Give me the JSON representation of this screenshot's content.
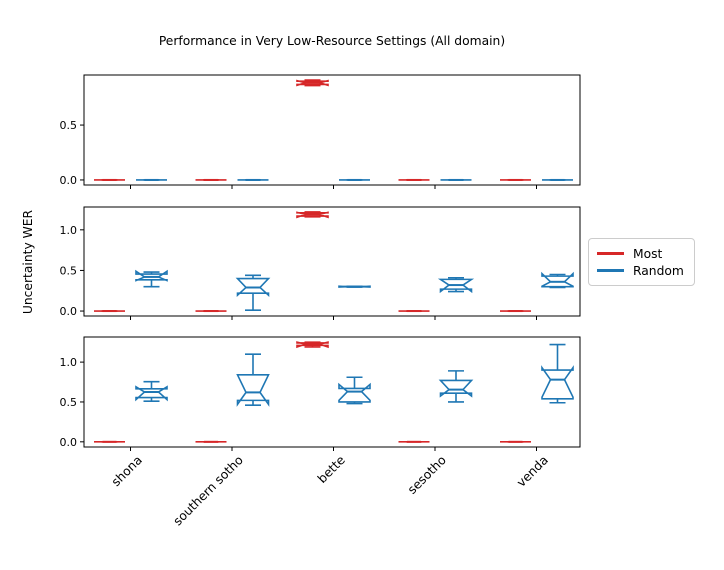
{
  "chart_data": {
    "type": "boxplot",
    "title": "Performance in Very Low-Resource Settings (All domain)",
    "ylabel": "Uncertainty WER",
    "categories": [
      "shona",
      "southern sotho",
      "bette",
      "sesotho",
      "venda"
    ],
    "legend": [
      {
        "label": "Most",
        "color": "#d62728"
      },
      {
        "label": "Random",
        "color": "#1f77b4"
      }
    ],
    "legend_position": "center right, outside axes",
    "notched": true,
    "colors": {
      "most": "#d62728",
      "random": "#1f77b4",
      "axis": "#000000",
      "background": "#ffffff"
    },
    "subplots": [
      {
        "yticks": [
          0.0,
          0.5
        ],
        "ylim": [
          -0.046,
          0.956
        ],
        "series": [
          {
            "name": "Most",
            "color": "#d62728",
            "boxes": [
              {
                "wlo": 0,
                "q1": 0,
                "med": 0,
                "q3": 0,
                "whi": 0,
                "nlo": 0,
                "nhi": 0
              },
              {
                "wlo": 0,
                "q1": 0,
                "med": 0,
                "q3": 0,
                "whi": 0,
                "nlo": 0,
                "nhi": 0
              },
              {
                "wlo": 0.86,
                "q1": 0.87,
                "med": 0.885,
                "q3": 0.9,
                "whi": 0.91,
                "nlo": 0.862,
                "nhi": 0.905
              },
              {
                "wlo": 0,
                "q1": 0,
                "med": 0,
                "q3": 0,
                "whi": 0,
                "nlo": 0,
                "nhi": 0
              },
              {
                "wlo": 0,
                "q1": 0,
                "med": 0,
                "q3": 0,
                "whi": 0,
                "nlo": 0,
                "nhi": 0
              }
            ]
          },
          {
            "name": "Random",
            "color": "#1f77b4",
            "boxes": [
              {
                "wlo": 0,
                "q1": 0,
                "med": 0,
                "q3": 0,
                "whi": 0,
                "nlo": 0,
                "nhi": 0
              },
              {
                "wlo": 0,
                "q1": 0,
                "med": 0,
                "q3": 0,
                "whi": 0,
                "nlo": 0,
                "nhi": 0
              },
              {
                "wlo": 0,
                "q1": 0,
                "med": 0,
                "q3": 0,
                "whi": 0,
                "nlo": 0,
                "nhi": 0
              },
              {
                "wlo": 0,
                "q1": 0,
                "med": 0,
                "q3": 0,
                "whi": 0,
                "nlo": 0,
                "nhi": 0
              },
              {
                "wlo": 0,
                "q1": 0,
                "med": 0,
                "q3": 0,
                "whi": 0,
                "nlo": 0,
                "nhi": 0
              }
            ]
          }
        ]
      },
      {
        "yticks": [
          0.0,
          0.5,
          1.0
        ],
        "ylim": [
          -0.061,
          1.281
        ],
        "series": [
          {
            "name": "Most",
            "color": "#d62728",
            "boxes": [
              {
                "wlo": 0,
                "q1": 0,
                "med": 0,
                "q3": 0,
                "whi": 0,
                "nlo": 0,
                "nhi": 0
              },
              {
                "wlo": 0,
                "q1": 0,
                "med": 0,
                "q3": 0,
                "whi": 0,
                "nlo": 0,
                "nhi": 0
              },
              {
                "wlo": 1.16,
                "q1": 1.17,
                "med": 1.19,
                "q3": 1.21,
                "whi": 1.22,
                "nlo": 1.155,
                "nhi": 1.215
              },
              {
                "wlo": 0,
                "q1": 0,
                "med": 0,
                "q3": 0,
                "whi": 0,
                "nlo": 0,
                "nhi": 0
              },
              {
                "wlo": 0,
                "q1": 0,
                "med": 0,
                "q3": 0,
                "whi": 0,
                "nlo": 0,
                "nhi": 0
              }
            ]
          },
          {
            "name": "Random",
            "color": "#1f77b4",
            "boxes": [
              {
                "wlo": 0.3,
                "q1": 0.385,
                "med": 0.42,
                "q3": 0.455,
                "whi": 0.48,
                "nlo": 0.375,
                "nhi": 0.49
              },
              {
                "wlo": 0.01,
                "q1": 0.22,
                "med": 0.29,
                "q3": 0.4,
                "whi": 0.44,
                "nlo": 0.195,
                "nhi": 0.4
              },
              {
                "wlo": 0.295,
                "q1": 0.298,
                "med": 0.3,
                "q3": 0.303,
                "whi": 0.305,
                "nlo": 0.295,
                "nhi": 0.305
              },
              {
                "wlo": 0.24,
                "q1": 0.27,
                "med": 0.32,
                "q3": 0.39,
                "whi": 0.41,
                "nlo": 0.24,
                "nhi": 0.39
              },
              {
                "wlo": 0.29,
                "q1": 0.3,
                "med": 0.36,
                "q3": 0.43,
                "whi": 0.45,
                "nlo": 0.305,
                "nhi": 0.46
              }
            ]
          }
        ]
      },
      {
        "yticks": [
          0.0,
          0.5,
          1.0
        ],
        "ylim": [
          -0.065,
          1.315
        ],
        "series": [
          {
            "name": "Most",
            "color": "#d62728",
            "boxes": [
              {
                "wlo": 0,
                "q1": 0,
                "med": 0,
                "q3": 0,
                "whi": 0,
                "nlo": 0,
                "nhi": 0
              },
              {
                "wlo": 0,
                "q1": 0,
                "med": 0,
                "q3": 0,
                "whi": 0,
                "nlo": 0,
                "nhi": 0
              },
              {
                "wlo": 1.19,
                "q1": 1.21,
                "med": 1.225,
                "q3": 1.24,
                "whi": 1.25,
                "nlo": 1.19,
                "nhi": 1.25
              },
              {
                "wlo": 0,
                "q1": 0,
                "med": 0,
                "q3": 0,
                "whi": 0,
                "nlo": 0,
                "nhi": 0
              },
              {
                "wlo": 0,
                "q1": 0,
                "med": 0,
                "q3": 0,
                "whi": 0,
                "nlo": 0,
                "nhi": 0
              }
            ]
          },
          {
            "name": "Random",
            "color": "#1f77b4",
            "boxes": [
              {
                "wlo": 0.51,
                "q1": 0.555,
                "med": 0.625,
                "q3": 0.665,
                "whi": 0.755,
                "nlo": 0.53,
                "nhi": 0.69
              },
              {
                "wlo": 0.46,
                "q1": 0.52,
                "med": 0.62,
                "q3": 0.84,
                "whi": 1.1,
                "nlo": 0.47,
                "nhi": 0.84
              },
              {
                "wlo": 0.48,
                "q1": 0.5,
                "med": 0.63,
                "q3": 0.67,
                "whi": 0.81,
                "nlo": 0.52,
                "nhi": 0.72
              },
              {
                "wlo": 0.5,
                "q1": 0.61,
                "med": 0.655,
                "q3": 0.77,
                "whi": 0.89,
                "nlo": 0.575,
                "nhi": 0.77
              },
              {
                "wlo": 0.49,
                "q1": 0.54,
                "med": 0.78,
                "q3": 0.9,
                "whi": 1.22,
                "nlo": 0.56,
                "nhi": 0.93
              }
            ]
          }
        ]
      }
    ]
  }
}
